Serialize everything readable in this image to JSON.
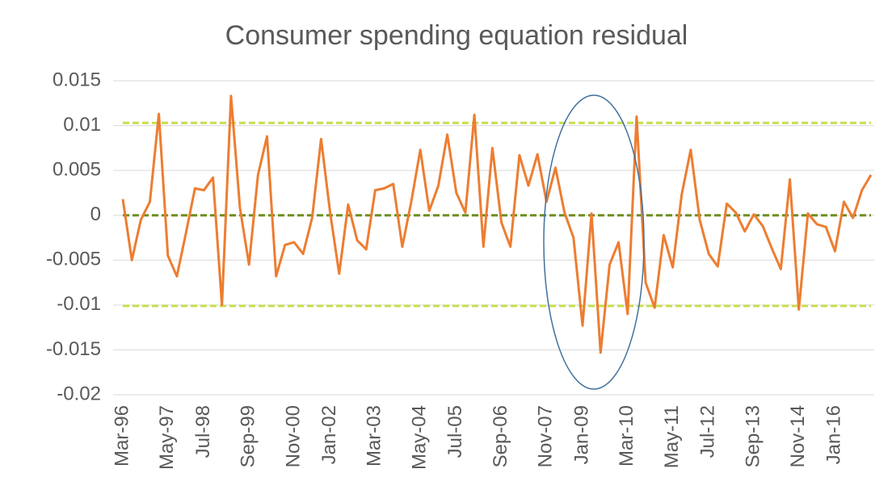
{
  "chart_data": {
    "type": "line",
    "title": "Consumer spending equation residual",
    "categories": [
      "Mar-96",
      null,
      null,
      null,
      null,
      "May-97",
      null,
      null,
      null,
      "Jul-98",
      null,
      null,
      null,
      null,
      "Sep-99",
      null,
      null,
      null,
      null,
      "Nov-00",
      null,
      null,
      null,
      "Jan-02",
      null,
      null,
      null,
      null,
      "Mar-03",
      null,
      null,
      null,
      null,
      "May-04",
      null,
      null,
      null,
      "Jul-05",
      null,
      null,
      null,
      null,
      "Sep-06",
      null,
      null,
      null,
      null,
      "Nov-07",
      null,
      null,
      null,
      "Jan-09",
      null,
      null,
      null,
      null,
      "Mar-10",
      null,
      null,
      null,
      null,
      "May-11",
      null,
      null,
      null,
      "Jul-12",
      null,
      null,
      null,
      null,
      "Sep-13",
      null,
      null,
      null,
      null,
      "Nov-14",
      null,
      null,
      null,
      "Jan-16",
      null,
      null,
      null,
      null
    ],
    "series": [
      {
        "color": "#ed7d31",
        "values": [
          0.0018,
          -0.005,
          -0.0005,
          0.0015,
          0.0113,
          -0.0045,
          -0.0068,
          -0.002,
          0.003,
          0.0028,
          0.0042,
          -0.01,
          0.0133,
          0.0008,
          -0.0055,
          0.0045,
          0.0088,
          -0.0068,
          -0.0033,
          -0.003,
          -0.0043,
          -0.0003,
          0.0085,
          0.0003,
          -0.0065,
          0.0012,
          -0.0028,
          -0.0038,
          0.0028,
          0.003,
          0.0035,
          -0.0035,
          0.0015,
          0.0073,
          0.0005,
          0.0033,
          0.009,
          0.0025,
          0.0003,
          0.0112,
          -0.0035,
          0.0075,
          -0.0008,
          -0.0035,
          0.0067,
          0.0033,
          0.0068,
          0.0015,
          0.0053,
          0.0003,
          -0.0025,
          -0.0123,
          0.0002,
          -0.0153,
          -0.0055,
          -0.003,
          -0.011,
          0.011,
          -0.0075,
          -0.0103,
          -0.0022,
          -0.0058,
          0.0023,
          0.0073,
          -0.0005,
          -0.0043,
          -0.0057,
          0.0013,
          0.0003,
          -0.0018,
          0.0001,
          -0.0012,
          -0.0037,
          -0.006,
          0.004,
          -0.0105,
          0.0002,
          -0.001,
          -0.0013,
          -0.004,
          0.0015,
          -0.0003,
          0.0028,
          0.0045
        ]
      }
    ],
    "reference_lines": [
      {
        "value": 0.0103,
        "color": "#c9dc4f"
      },
      {
        "value": -0.0101,
        "color": "#c9dc4f"
      },
      {
        "value": 0,
        "color": "#6e8f1e"
      }
    ],
    "ylim": [
      -0.02,
      0.015
    ],
    "yticks": [
      0.015,
      0.01,
      0.005,
      0,
      -0.005,
      -0.01,
      -0.015,
      -0.02
    ],
    "grid": true
  }
}
